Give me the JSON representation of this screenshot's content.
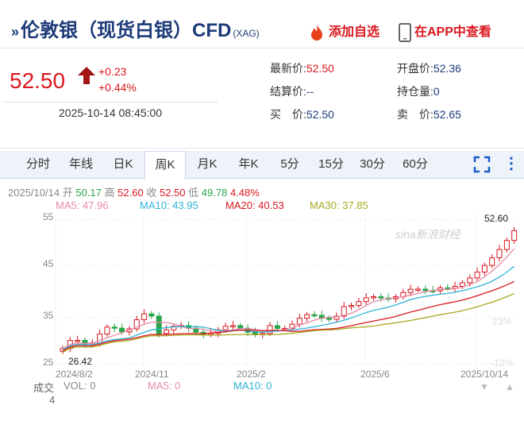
{
  "header": {
    "title": "伦敦银（现货白银）CFD",
    "subtitle": "(XAG)",
    "add_watch": "添加自选",
    "app_view": "在APP中查看"
  },
  "quote": {
    "price": "52.50",
    "change": "+0.23",
    "change_pct": "+0.44%",
    "timestamp": "2025-10-14 08:45:00",
    "latest_label": "最新价:",
    "latest": "52.50",
    "settle_label": "结算价:",
    "settle": "--",
    "bid_label": "买　价:",
    "bid": "52.50",
    "open_label": "开盘价:",
    "open": "52.36",
    "oi_label": "持仓量:",
    "oi": "0",
    "ask_label": "卖　价:",
    "ask": "52.65"
  },
  "tabs": [
    "分时",
    "年线",
    "日K",
    "周K",
    "月K",
    "年K",
    "5分",
    "15分",
    "30分",
    "60分"
  ],
  "active_tab": "周K",
  "ohlc": {
    "date": "2025/10/14",
    "open_label": "开",
    "open": "50.17",
    "high_label": "高",
    "high": "52.60",
    "close_label": "收",
    "close": "52.50",
    "low_label": "低",
    "low": "49.78",
    "pct": "4.48%"
  },
  "ma": {
    "ma5": "MA5: 47.96",
    "ma10": "MA10: 43.95",
    "ma20": "MA20: 40.53",
    "ma30": "MA30: 37.85"
  },
  "axes": {
    "y_ticks": [
      "55",
      "45",
      "35",
      "25"
    ],
    "x_ticks": [
      "2024/8/2",
      "2024/11",
      "2025/2",
      "2025/6",
      "2025/10/14"
    ],
    "pct_ticks": [
      "23%",
      "-12%"
    ],
    "max_label": "52.60",
    "min_label": "26.42"
  },
  "volume": {
    "label": "成交",
    "vol": "VOL: 0",
    "ma5": "MA5: 0",
    "ma10": "MA10: 0",
    "axis": "4"
  },
  "watermark": "sina新浪财经",
  "colors": {
    "up": "#d9181f",
    "down": "#2aa44a",
    "ma5": "#e88aa8",
    "ma10": "#2fb3d6",
    "ma20": "#d9181f",
    "ma30": "#a8a820"
  }
}
